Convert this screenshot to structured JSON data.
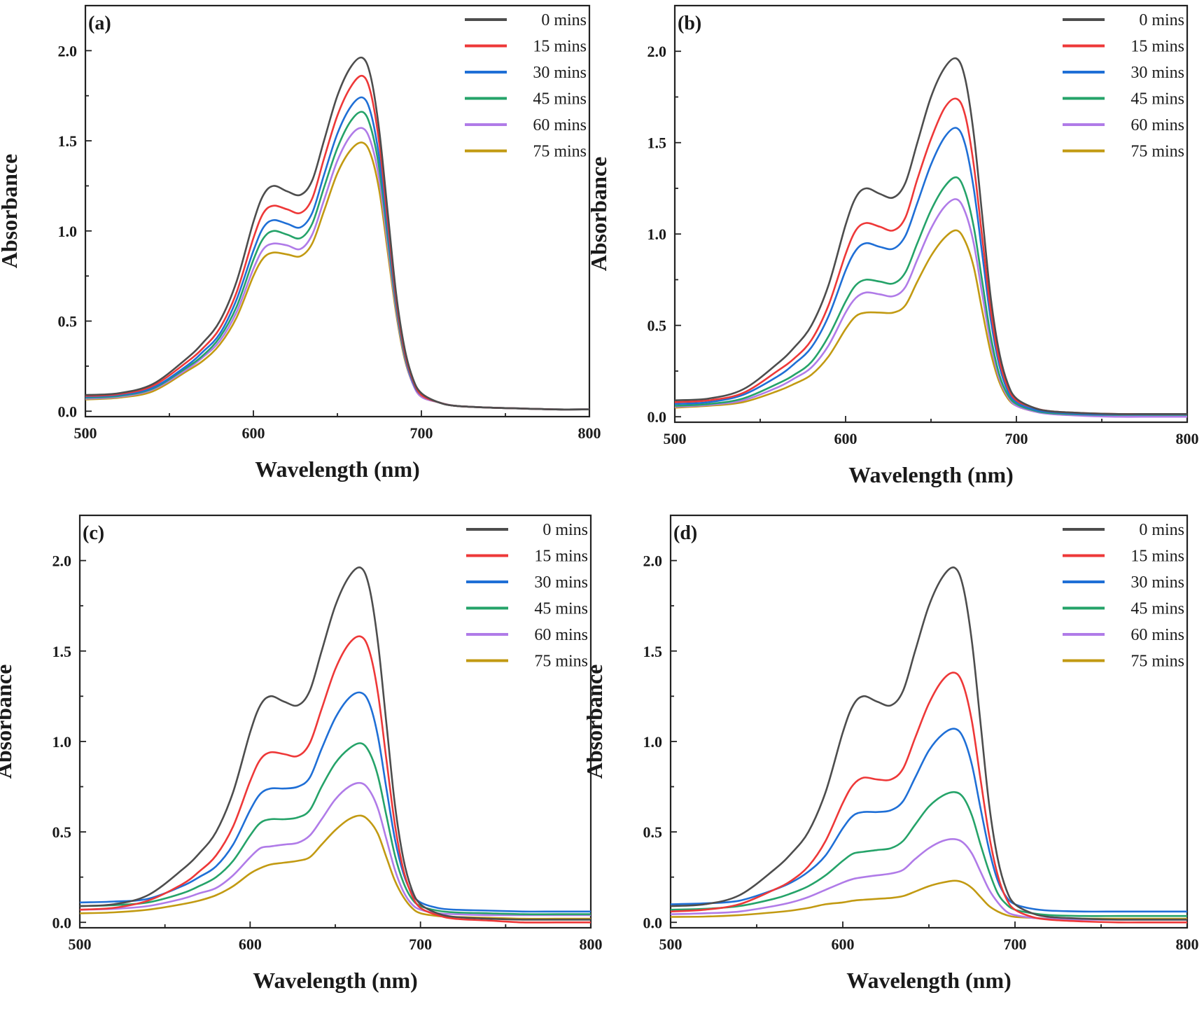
{
  "legend_colors": {
    "0 mins": "#4d4d4d",
    "15 mins": "#ee3838",
    "30 mins": "#1f6fd6",
    "45 mins": "#25a369",
    "60 mins": "#b07be8",
    "75 mins": "#c29a12"
  },
  "chart_data": [
    {
      "type": "line",
      "panel_label": "(a)",
      "xlabel": "Wavelength (nm)",
      "ylabel": "Absorbance",
      "xlim": [
        500,
        800
      ],
      "ylim": [
        -0.03,
        2.25
      ],
      "xticks": [
        "500",
        "600",
        "700",
        "800"
      ],
      "yticks": [
        "0.0",
        "0.5",
        "1.0",
        "1.5",
        "2.0"
      ],
      "grid": false,
      "legend_position": "top-right",
      "x": [
        500,
        520,
        540,
        560,
        570,
        580,
        590,
        600,
        606,
        612,
        620,
        628,
        635,
        642,
        650,
        658,
        665,
        670,
        675,
        680,
        685,
        690,
        695,
        700,
        710,
        720,
        740,
        760,
        780,
        800
      ],
      "series": [
        {
          "name": "0 mins",
          "values": [
            0.09,
            0.1,
            0.15,
            0.29,
            0.38,
            0.5,
            0.72,
            1.05,
            1.2,
            1.25,
            1.22,
            1.2,
            1.28,
            1.5,
            1.75,
            1.91,
            1.96,
            1.85,
            1.55,
            1.1,
            0.65,
            0.35,
            0.18,
            0.1,
            0.05,
            0.03,
            0.02,
            0.015,
            0.01,
            0.01
          ]
        },
        {
          "name": "15 mins",
          "values": [
            0.085,
            0.095,
            0.14,
            0.27,
            0.35,
            0.46,
            0.66,
            0.96,
            1.1,
            1.14,
            1.12,
            1.1,
            1.18,
            1.4,
            1.64,
            1.8,
            1.86,
            1.76,
            1.48,
            1.05,
            0.62,
            0.33,
            0.17,
            0.09,
            0.05,
            0.03,
            0.02,
            0.015,
            0.01,
            0.01
          ]
        },
        {
          "name": "30 mins",
          "values": [
            0.08,
            0.09,
            0.13,
            0.25,
            0.33,
            0.43,
            0.62,
            0.89,
            1.02,
            1.06,
            1.04,
            1.02,
            1.1,
            1.31,
            1.54,
            1.69,
            1.74,
            1.65,
            1.4,
            1.0,
            0.6,
            0.32,
            0.16,
            0.09,
            0.05,
            0.03,
            0.02,
            0.015,
            0.01,
            0.01
          ]
        },
        {
          "name": "45 mins",
          "values": [
            0.075,
            0.085,
            0.125,
            0.24,
            0.31,
            0.41,
            0.58,
            0.84,
            0.96,
            1.0,
            0.98,
            0.96,
            1.04,
            1.24,
            1.46,
            1.61,
            1.66,
            1.57,
            1.34,
            0.96,
            0.58,
            0.31,
            0.16,
            0.09,
            0.05,
            0.03,
            0.02,
            0.015,
            0.01,
            0.01
          ]
        },
        {
          "name": "60 mins",
          "values": [
            0.07,
            0.08,
            0.12,
            0.23,
            0.3,
            0.39,
            0.55,
            0.79,
            0.9,
            0.93,
            0.92,
            0.9,
            0.98,
            1.17,
            1.39,
            1.53,
            1.57,
            1.49,
            1.28,
            0.92,
            0.56,
            0.3,
            0.15,
            0.08,
            0.05,
            0.03,
            0.02,
            0.015,
            0.01,
            0.01
          ]
        },
        {
          "name": "75 mins",
          "values": [
            0.065,
            0.075,
            0.11,
            0.22,
            0.28,
            0.37,
            0.52,
            0.75,
            0.85,
            0.88,
            0.87,
            0.86,
            0.93,
            1.11,
            1.32,
            1.45,
            1.49,
            1.42,
            1.22,
            0.88,
            0.54,
            0.29,
            0.15,
            0.08,
            0.05,
            0.03,
            0.02,
            0.015,
            0.01,
            0.01
          ]
        }
      ]
    },
    {
      "type": "line",
      "panel_label": "(b)",
      "xlabel": "Wavelength (nm)",
      "ylabel": "Absorbance",
      "xlim": [
        500,
        800
      ],
      "ylim": [
        -0.03,
        2.25
      ],
      "xticks": [
        "500",
        "600",
        "700",
        "800"
      ],
      "yticks": [
        "0.0",
        "0.5",
        "1.0",
        "1.5",
        "2.0"
      ],
      "grid": false,
      "legend_position": "top-right",
      "x": [
        500,
        520,
        540,
        560,
        570,
        580,
        590,
        600,
        606,
        612,
        620,
        628,
        635,
        642,
        650,
        658,
        665,
        670,
        675,
        680,
        685,
        690,
        695,
        700,
        710,
        720,
        740,
        760,
        780,
        800
      ],
      "series": [
        {
          "name": "0 mins",
          "values": [
            0.09,
            0.1,
            0.15,
            0.29,
            0.38,
            0.5,
            0.72,
            1.05,
            1.2,
            1.25,
            1.22,
            1.2,
            1.28,
            1.5,
            1.75,
            1.91,
            1.96,
            1.85,
            1.55,
            1.1,
            0.65,
            0.35,
            0.18,
            0.1,
            0.05,
            0.03,
            0.02,
            0.015,
            0.015,
            0.015
          ]
        },
        {
          "name": "15 mins",
          "values": [
            0.08,
            0.09,
            0.13,
            0.25,
            0.32,
            0.42,
            0.61,
            0.89,
            1.02,
            1.06,
            1.04,
            1.02,
            1.09,
            1.3,
            1.52,
            1.69,
            1.74,
            1.65,
            1.38,
            0.98,
            0.58,
            0.31,
            0.16,
            0.09,
            0.05,
            0.03,
            0.02,
            0.015,
            0.015,
            0.015
          ]
        },
        {
          "name": "30 mins",
          "values": [
            0.07,
            0.08,
            0.12,
            0.22,
            0.29,
            0.38,
            0.55,
            0.8,
            0.91,
            0.95,
            0.93,
            0.92,
            0.99,
            1.17,
            1.38,
            1.53,
            1.58,
            1.49,
            1.25,
            0.89,
            0.53,
            0.28,
            0.14,
            0.08,
            0.04,
            0.025,
            0.015,
            0.012,
            0.012,
            0.012
          ]
        },
        {
          "name": "45 mins",
          "values": [
            0.06,
            0.07,
            0.1,
            0.18,
            0.23,
            0.3,
            0.44,
            0.63,
            0.72,
            0.75,
            0.74,
            0.73,
            0.79,
            0.95,
            1.13,
            1.26,
            1.31,
            1.23,
            1.04,
            0.74,
            0.44,
            0.23,
            0.12,
            0.07,
            0.035,
            0.02,
            0.012,
            0.01,
            0.01,
            0.01
          ]
        },
        {
          "name": "60 mins",
          "values": [
            0.055,
            0.065,
            0.09,
            0.16,
            0.21,
            0.27,
            0.39,
            0.57,
            0.65,
            0.68,
            0.67,
            0.66,
            0.71,
            0.86,
            1.03,
            1.15,
            1.19,
            1.12,
            0.95,
            0.67,
            0.4,
            0.21,
            0.11,
            0.06,
            0.03,
            0.015,
            0.005,
            0.0,
            0.0,
            0.0
          ]
        },
        {
          "name": "75 mins",
          "values": [
            0.05,
            0.06,
            0.08,
            0.14,
            0.18,
            0.23,
            0.33,
            0.48,
            0.55,
            0.57,
            0.57,
            0.57,
            0.61,
            0.74,
            0.88,
            0.98,
            1.02,
            0.96,
            0.82,
            0.58,
            0.35,
            0.19,
            0.1,
            0.06,
            0.03,
            0.02,
            0.015,
            0.015,
            0.015,
            0.015
          ]
        }
      ]
    },
    {
      "type": "line",
      "panel_label": "(c)",
      "xlabel": "Wavelength (nm)",
      "ylabel": "Absorbance",
      "xlim": [
        500,
        800
      ],
      "ylim": [
        -0.03,
        2.25
      ],
      "xticks": [
        "500",
        "600",
        "700",
        "800"
      ],
      "yticks": [
        "0.0",
        "0.5",
        "1.0",
        "1.5",
        "2.0"
      ],
      "grid": false,
      "legend_position": "top-right",
      "x": [
        500,
        520,
        540,
        560,
        570,
        580,
        590,
        600,
        606,
        612,
        620,
        628,
        635,
        642,
        650,
        658,
        665,
        670,
        675,
        680,
        685,
        690,
        695,
        700,
        710,
        720,
        740,
        760,
        780,
        800
      ],
      "series": [
        {
          "name": "0 mins",
          "values": [
            0.09,
            0.1,
            0.15,
            0.29,
            0.38,
            0.5,
            0.72,
            1.05,
            1.2,
            1.25,
            1.22,
            1.2,
            1.28,
            1.5,
            1.75,
            1.91,
            1.96,
            1.85,
            1.55,
            1.1,
            0.65,
            0.35,
            0.18,
            0.1,
            0.05,
            0.03,
            0.02,
            0.015,
            0.015,
            0.015
          ]
        },
        {
          "name": "15 mins",
          "values": [
            0.07,
            0.08,
            0.12,
            0.21,
            0.28,
            0.37,
            0.53,
            0.78,
            0.9,
            0.94,
            0.93,
            0.92,
            0.99,
            1.18,
            1.4,
            1.54,
            1.58,
            1.5,
            1.27,
            0.9,
            0.54,
            0.29,
            0.15,
            0.08,
            0.04,
            0.02,
            0.01,
            0.0,
            0.0,
            0.0
          ]
        },
        {
          "name": "30 mins",
          "values": [
            0.11,
            0.115,
            0.13,
            0.2,
            0.25,
            0.31,
            0.43,
            0.62,
            0.71,
            0.74,
            0.74,
            0.75,
            0.8,
            0.96,
            1.13,
            1.24,
            1.27,
            1.21,
            1.03,
            0.74,
            0.46,
            0.27,
            0.16,
            0.11,
            0.08,
            0.07,
            0.065,
            0.06,
            0.06,
            0.06
          ]
        },
        {
          "name": "45 mins",
          "values": [
            0.09,
            0.095,
            0.11,
            0.16,
            0.2,
            0.25,
            0.34,
            0.48,
            0.55,
            0.57,
            0.57,
            0.58,
            0.62,
            0.75,
            0.88,
            0.96,
            0.99,
            0.94,
            0.81,
            0.59,
            0.37,
            0.22,
            0.13,
            0.09,
            0.065,
            0.055,
            0.05,
            0.045,
            0.045,
            0.045
          ]
        },
        {
          "name": "60 mins",
          "values": [
            0.07,
            0.075,
            0.09,
            0.13,
            0.16,
            0.19,
            0.26,
            0.36,
            0.41,
            0.42,
            0.43,
            0.44,
            0.48,
            0.57,
            0.68,
            0.75,
            0.77,
            0.73,
            0.63,
            0.46,
            0.29,
            0.17,
            0.1,
            0.07,
            0.05,
            0.045,
            0.04,
            0.04,
            0.04,
            0.04
          ]
        },
        {
          "name": "75 mins",
          "values": [
            0.05,
            0.055,
            0.07,
            0.1,
            0.12,
            0.15,
            0.2,
            0.27,
            0.3,
            0.32,
            0.33,
            0.34,
            0.36,
            0.43,
            0.51,
            0.57,
            0.59,
            0.56,
            0.49,
            0.36,
            0.23,
            0.14,
            0.08,
            0.05,
            0.035,
            0.03,
            0.025,
            0.02,
            0.02,
            0.02
          ]
        }
      ]
    },
    {
      "type": "line",
      "panel_label": "(d)",
      "xlabel": "Wavelength (nm)",
      "ylabel": "Absorbance",
      "xlim": [
        500,
        800
      ],
      "ylim": [
        -0.03,
        2.25
      ],
      "xticks": [
        "500",
        "600",
        "700",
        "800"
      ],
      "yticks": [
        "0.0",
        "0.5",
        "1.0",
        "1.5",
        "2.0"
      ],
      "grid": false,
      "legend_position": "top-right",
      "x": [
        500,
        520,
        540,
        560,
        570,
        580,
        590,
        600,
        606,
        612,
        620,
        628,
        635,
        642,
        650,
        658,
        665,
        670,
        675,
        680,
        685,
        690,
        695,
        700,
        710,
        720,
        740,
        760,
        780,
        800
      ],
      "series": [
        {
          "name": "0 mins",
          "values": [
            0.09,
            0.1,
            0.15,
            0.29,
            0.38,
            0.5,
            0.72,
            1.05,
            1.2,
            1.25,
            1.22,
            1.2,
            1.28,
            1.5,
            1.75,
            1.91,
            1.96,
            1.85,
            1.55,
            1.1,
            0.65,
            0.35,
            0.18,
            0.1,
            0.05,
            0.03,
            0.02,
            0.015,
            0.015,
            0.015
          ]
        },
        {
          "name": "15 mins",
          "values": [
            0.06,
            0.07,
            0.1,
            0.18,
            0.23,
            0.31,
            0.45,
            0.66,
            0.76,
            0.8,
            0.79,
            0.79,
            0.85,
            1.02,
            1.21,
            1.34,
            1.38,
            1.31,
            1.11,
            0.79,
            0.48,
            0.26,
            0.13,
            0.07,
            0.03,
            0.015,
            0.005,
            0.0,
            0.0,
            0.0
          ]
        },
        {
          "name": "30 mins",
          "values": [
            0.1,
            0.105,
            0.12,
            0.18,
            0.22,
            0.28,
            0.37,
            0.52,
            0.59,
            0.61,
            0.61,
            0.62,
            0.67,
            0.8,
            0.95,
            1.04,
            1.07,
            1.02,
            0.87,
            0.63,
            0.4,
            0.23,
            0.14,
            0.1,
            0.075,
            0.065,
            0.06,
            0.06,
            0.06,
            0.06
          ]
        },
        {
          "name": "45 mins",
          "values": [
            0.07,
            0.075,
            0.09,
            0.13,
            0.16,
            0.2,
            0.26,
            0.34,
            0.38,
            0.39,
            0.4,
            0.41,
            0.45,
            0.54,
            0.64,
            0.7,
            0.72,
            0.69,
            0.59,
            0.43,
            0.28,
            0.16,
            0.1,
            0.07,
            0.05,
            0.04,
            0.035,
            0.035,
            0.035,
            0.035
          ]
        },
        {
          "name": "60 mins",
          "values": [
            0.045,
            0.05,
            0.06,
            0.09,
            0.11,
            0.14,
            0.18,
            0.22,
            0.24,
            0.25,
            0.26,
            0.27,
            0.29,
            0.35,
            0.41,
            0.45,
            0.46,
            0.44,
            0.38,
            0.28,
            0.18,
            0.11,
            0.06,
            0.04,
            0.025,
            0.02,
            0.015,
            0.015,
            0.015,
            0.015
          ]
        },
        {
          "name": "75 mins",
          "values": [
            0.03,
            0.032,
            0.04,
            0.055,
            0.065,
            0.08,
            0.1,
            0.11,
            0.12,
            0.125,
            0.13,
            0.135,
            0.145,
            0.17,
            0.2,
            0.22,
            0.23,
            0.22,
            0.19,
            0.14,
            0.09,
            0.06,
            0.04,
            0.03,
            0.025,
            0.02,
            0.02,
            0.02,
            0.02,
            0.02
          ]
        }
      ]
    }
  ]
}
